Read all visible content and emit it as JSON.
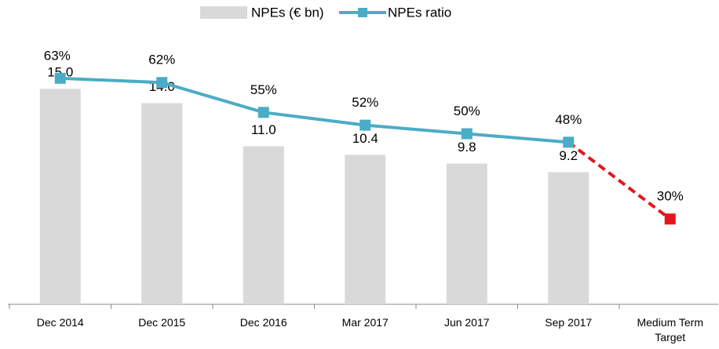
{
  "chart_data": {
    "type": "bar-line",
    "categories": [
      "Dec 2014",
      "Dec 2015",
      "Dec 2016",
      "Mar 2017",
      "Jun 2017",
      "Sep 2017",
      "Medium Term Target"
    ],
    "series": [
      {
        "name": "NPEs (€ bn)",
        "type": "bar",
        "color": "#d9d9d9",
        "values": [
          15.0,
          14.0,
          11.0,
          10.4,
          9.8,
          9.2,
          null
        ],
        "value_labels": [
          "15.0",
          "14.0",
          "11.0",
          "10.4",
          "9.8",
          "9.2",
          null
        ]
      },
      {
        "name": "NPEs ratio",
        "type": "line",
        "axis": "y2",
        "color": "#4bacc6",
        "values": [
          63,
          62,
          55,
          52,
          50,
          48,
          30
        ],
        "value_labels": [
          "63%",
          "62%",
          "55%",
          "52%",
          "50%",
          "48%",
          "30%"
        ],
        "last_segment_style": "dashed",
        "last_segment_color": "#e8141b"
      }
    ],
    "ylim": [
      0,
      19
    ],
    "y2lim": [
      10,
      74
    ],
    "legend": "top"
  }
}
